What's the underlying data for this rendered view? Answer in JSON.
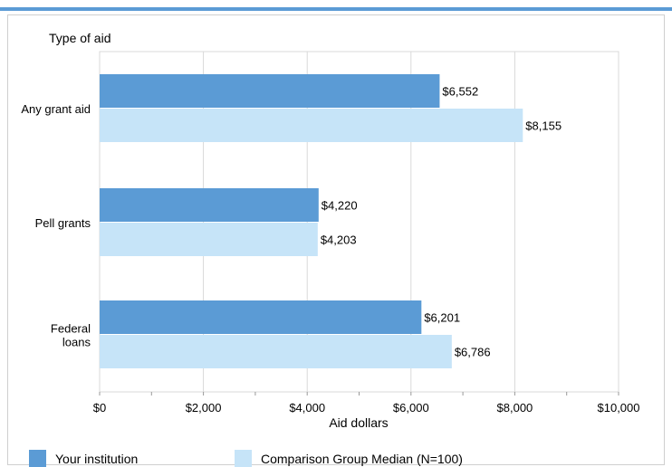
{
  "theme": {
    "accent_rule": "#5b9bd5",
    "institution": "#5b9bd5",
    "comparison": "#c6e4f8",
    "grid": "#d9d9d9",
    "border": "#cfcfcf"
  },
  "chart_data": {
    "type": "bar",
    "orientation": "horizontal",
    "title": "",
    "ylabel": "Type of aid",
    "xlabel": "Aid dollars",
    "categories": [
      "Any grant aid",
      "Pell grants",
      "Federal loans"
    ],
    "category_lines": [
      [
        "Any grant aid"
      ],
      [
        "Pell grants"
      ],
      [
        "Federal",
        "loans"
      ]
    ],
    "series": [
      {
        "name": "Your institution",
        "values": [
          6552,
          4220,
          6201
        ],
        "labels": [
          "$6,552",
          "$4,220",
          "$6,201"
        ]
      },
      {
        "name": "Comparison Group Median (N=100)",
        "values": [
          8155,
          4203,
          6786
        ],
        "labels": [
          "$8,155",
          "$4,203",
          "$6,786"
        ]
      }
    ],
    "xlim": [
      0,
      10000
    ],
    "ticks": [
      0,
      2000,
      4000,
      6000,
      8000,
      10000
    ],
    "tick_labels": [
      "$0",
      "$2,000",
      "$4,000",
      "$6,000",
      "$8,000",
      "$10,000"
    ],
    "grid": true,
    "legend_position": "bottom"
  }
}
